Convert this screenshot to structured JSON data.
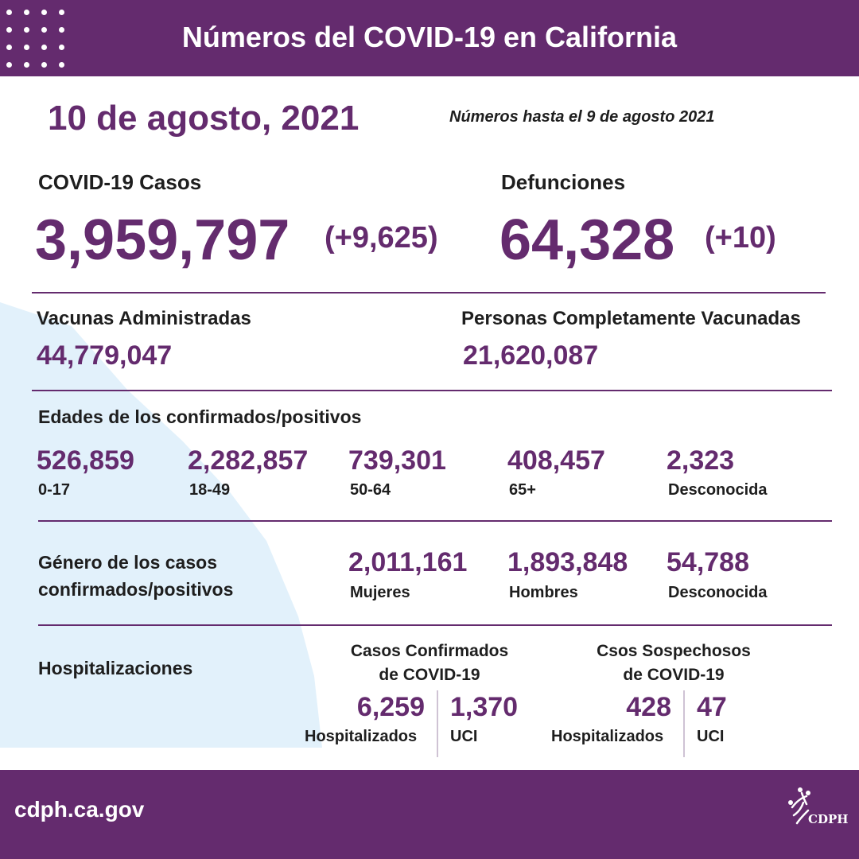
{
  "header": {
    "title": "Números del COVID-19 en California"
  },
  "date": "10 de agosto, 2021",
  "as_of": "Números hasta el 9 de agosto 2021",
  "cases": {
    "label": "COVID-19 Casos",
    "value": "3,959,797",
    "change": "(+9,625)"
  },
  "deaths": {
    "label": "Defunciones",
    "value": "64,328",
    "change": "(+10)"
  },
  "vaccines": {
    "label": "Vacunas Administradas",
    "value": "44,779,047"
  },
  "fully_vaccinated": {
    "label": "Personas Completamente Vacunadas",
    "value": "21,620,087"
  },
  "ages": {
    "title": "Edades de los confirmados/positivos",
    "groups": [
      {
        "value": "526,859",
        "label": "0-17"
      },
      {
        "value": "2,282,857",
        "label": "18-49"
      },
      {
        "value": "739,301",
        "label": "50-64"
      },
      {
        "value": "408,457",
        "label": "65+"
      },
      {
        "value": "2,323",
        "label": "Desconocida"
      }
    ]
  },
  "gender": {
    "title_line1": "Género de los casos",
    "title_line2": "confirmados/positivos",
    "groups": [
      {
        "value": "2,011,161",
        "label": "Mujeres"
      },
      {
        "value": "1,893,848",
        "label": "Hombres"
      },
      {
        "value": "54,788",
        "label": "Desconocida"
      }
    ]
  },
  "hospitalizations": {
    "title": "Hospitalizaciones",
    "confirmed": {
      "heading_line1": "Casos Confirmados",
      "heading_line2": "de COVID-19",
      "hospitalized": {
        "value": "6,259",
        "label": "Hospitalizados"
      },
      "icu": {
        "value": "1,370",
        "label": "UCI"
      }
    },
    "suspected": {
      "heading_line1": "Csos Sospechosos",
      "heading_line2": "de COVID-19",
      "hospitalized": {
        "value": "428",
        "label": "Hospitalizados"
      },
      "icu": {
        "value": "47",
        "label": "UCI"
      }
    }
  },
  "footer": {
    "url": "cdph.ca.gov",
    "logo_text": "CDPH"
  },
  "colors": {
    "brand_purple": "#642b6e",
    "map_blue": "#e2f1fb",
    "text": "#1e1e1e"
  }
}
